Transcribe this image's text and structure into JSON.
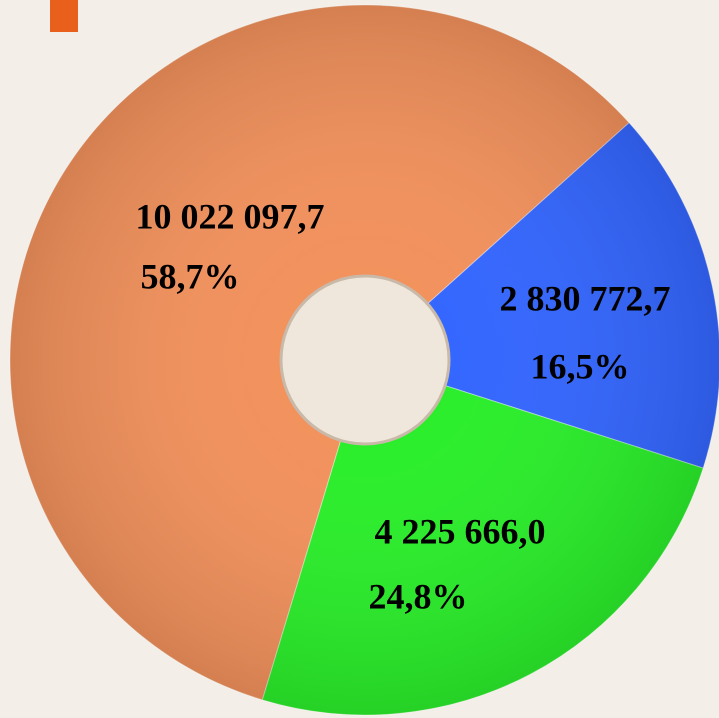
{
  "chart_data": {
    "type": "pie",
    "values": [
      10022097.7,
      2830772.7,
      4225666.0
    ],
    "value_labels": [
      "10 022 097,7",
      "2 830 772,7",
      "4 225 666,0"
    ],
    "shares": [
      58.7,
      16.5,
      24.8
    ],
    "share_labels": [
      "58,7%",
      "16,5%",
      "24,8%"
    ],
    "colors": [
      "#f2915c",
      "#3366ff",
      "#2aee2a"
    ]
  }
}
